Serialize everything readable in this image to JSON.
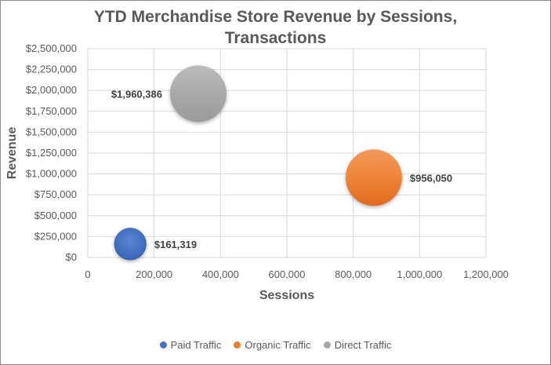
{
  "chart_data": {
    "type": "bubble",
    "title_lines": [
      "YTD Merchandise Store Revenue by Sessions,",
      "Transactions"
    ],
    "xlabel": "Sessions",
    "ylabel": "Revenue",
    "xlim": [
      0,
      1200000
    ],
    "ylim": [
      0,
      2500000
    ],
    "x_ticks": [
      0,
      200000,
      400000,
      600000,
      800000,
      1000000,
      1200000
    ],
    "x_tick_labels": [
      "0",
      "200,000",
      "400,000",
      "600,000",
      "800,000",
      "1,000,000",
      "1,200,000"
    ],
    "y_ticks": [
      0,
      250000,
      500000,
      750000,
      1000000,
      1250000,
      1500000,
      1750000,
      2000000,
      2250000,
      2500000
    ],
    "y_tick_labels": [
      "$0",
      "$250,000",
      "$500,000",
      "$750,000",
      "$1,000,000",
      "$1,250,000",
      "$1,500,000",
      "$1,750,000",
      "$2,000,000",
      "$2,250,000",
      "$2,500,000"
    ],
    "grid": true,
    "legend_position": "bottom",
    "series": [
      {
        "name": "Paid Traffic",
        "x": 128000,
        "y": 161319,
        "size": 0.33,
        "color": "#4472c4",
        "label": "$161,319"
      },
      {
        "name": "Organic Traffic",
        "x": 862000,
        "y": 956050,
        "size": 1.0,
        "color": "#ed7d31",
        "label": "$956,050"
      },
      {
        "name": "Direct Traffic",
        "x": 333000,
        "y": 1960386,
        "size": 1.0,
        "color": "#a5a5a5",
        "label": "$1,960,386"
      }
    ]
  }
}
